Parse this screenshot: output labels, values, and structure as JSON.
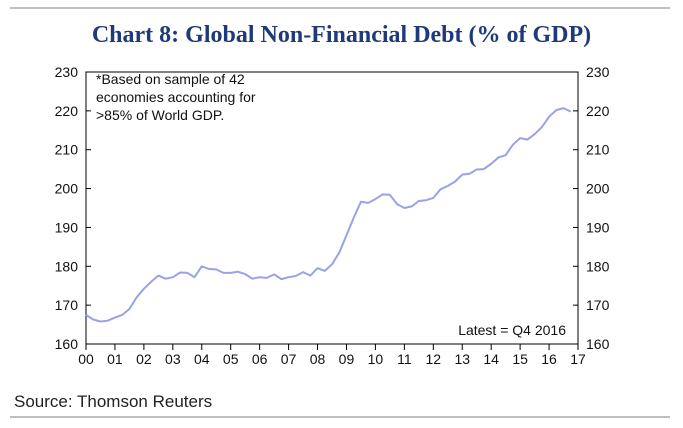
{
  "title": "Chart 8: Global Non-Financial Debt (% of GDP)",
  "source": "Source: Thomson Reuters",
  "chart_data": {
    "type": "line",
    "title": "Chart 8: Global Non-Financial Debt (% of GDP)",
    "xlabel": "",
    "ylabel": "",
    "ylim": [
      160,
      230
    ],
    "yticks": [
      "160",
      "170",
      "180",
      "190",
      "200",
      "210",
      "220",
      "230"
    ],
    "xlim": [
      0,
      17
    ],
    "xticks": [
      "00",
      "01",
      "02",
      "03",
      "04",
      "05",
      "06",
      "07",
      "08",
      "09",
      "10",
      "11",
      "12",
      "13",
      "14",
      "15",
      "16",
      "17"
    ],
    "grid": false,
    "line_color": "#9aa2e6",
    "annotations": [
      "*Based on sample of 42",
      "economies accounting for",
      ">85% of World GDP."
    ],
    "latest_label": "Latest = Q4 2016",
    "series": [
      {
        "x": [
          0,
          0.25,
          0.5,
          0.75,
          1,
          1.25,
          1.5,
          1.75,
          2,
          2.25,
          2.5,
          2.75,
          3,
          3.25,
          3.5,
          3.75,
          4,
          4.25,
          4.5,
          4.75,
          5,
          5.25,
          5.5,
          5.75,
          6,
          6.25,
          6.5,
          6.75,
          7,
          7.25,
          7.5,
          7.75,
          8,
          8.25,
          8.5,
          8.75,
          9,
          9.25,
          9.5,
          9.75,
          10,
          10.25,
          10.5,
          10.75,
          11,
          11.25,
          11.5,
          11.75,
          12,
          12.25,
          12.5,
          12.75,
          13,
          13.25,
          13.5,
          13.75,
          14,
          14.25,
          14.5,
          14.75,
          15,
          15.25,
          15.5,
          15.75,
          16,
          16.25,
          16.5,
          16.75
        ],
        "values": [
          167.5,
          166.3,
          165.8,
          166.0,
          166.8,
          167.5,
          169.0,
          172.0,
          174.2,
          176.0,
          177.6,
          176.8,
          177.2,
          178.4,
          178.3,
          177.2,
          180.0,
          179.3,
          179.2,
          178.3,
          178.3,
          178.6,
          178.0,
          176.8,
          177.2,
          177.0,
          177.9,
          176.7,
          177.2,
          177.5,
          178.5,
          177.6,
          179.5,
          178.8,
          180.5,
          183.5,
          188.0,
          192.5,
          196.6,
          196.3,
          197.3,
          198.5,
          198.4,
          196.0,
          195.0,
          195.4,
          196.8,
          197.0,
          197.6,
          199.8,
          200.7,
          201.8,
          203.6,
          203.8,
          204.9,
          205.0,
          206.4,
          208.0,
          208.6,
          211.3,
          213.0,
          212.6,
          214.0,
          215.8,
          218.5,
          220.2,
          220.7,
          219.8
        ]
      }
    ]
  }
}
